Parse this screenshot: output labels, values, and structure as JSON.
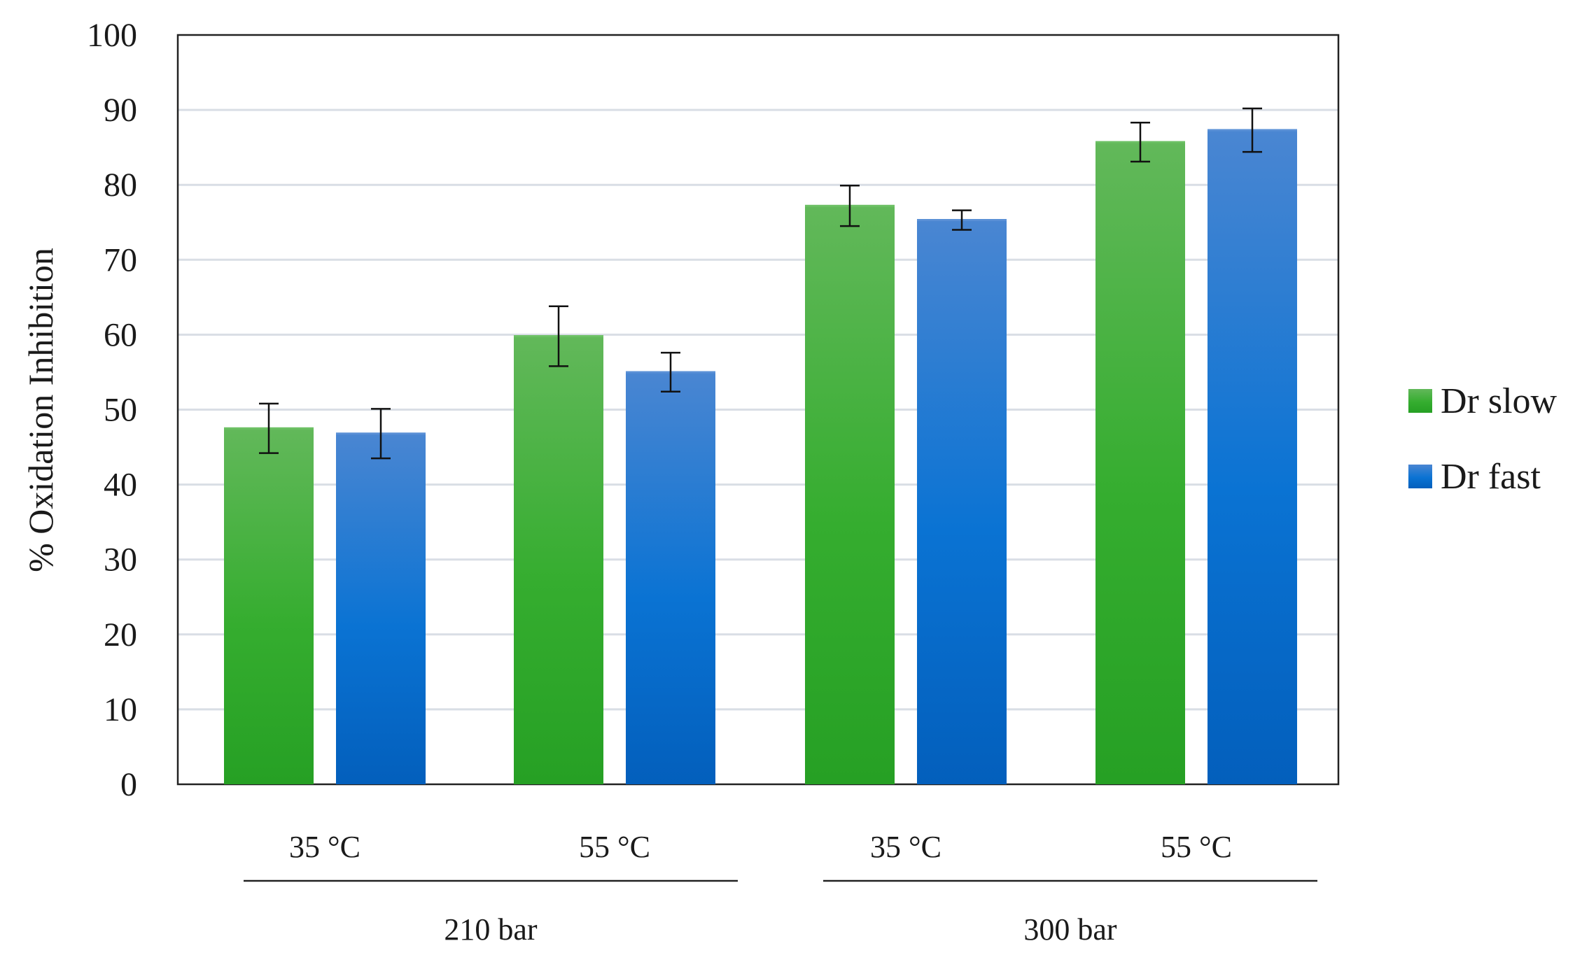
{
  "chart_data": {
    "type": "bar",
    "title": "",
    "xlabel": "",
    "ylabel": "% Oxidation Inhibition",
    "ylim": [
      0,
      100
    ],
    "yticks": [
      0,
      10,
      20,
      30,
      40,
      50,
      60,
      70,
      80,
      90,
      100
    ],
    "grid": true,
    "legend_position": "right",
    "categories": [
      "35 °C",
      "55 °C",
      "35 °C",
      "55 °C"
    ],
    "groups": [
      {
        "label": "210 bar",
        "categories": [
          0,
          1
        ]
      },
      {
        "label": "300 bar",
        "categories": [
          2,
          3
        ]
      }
    ],
    "series": [
      {
        "name": "Dr slow",
        "color": "#33a833",
        "values": [
          47.5,
          59.8,
          77.2,
          85.7
        ],
        "errors": [
          3.3,
          4.0,
          2.7,
          2.6
        ]
      },
      {
        "name": "Dr fast",
        "color": "#1a6fcc",
        "values": [
          46.8,
          55.0,
          75.3,
          87.3
        ],
        "errors": [
          3.3,
          2.6,
          1.3,
          2.9
        ]
      }
    ]
  }
}
